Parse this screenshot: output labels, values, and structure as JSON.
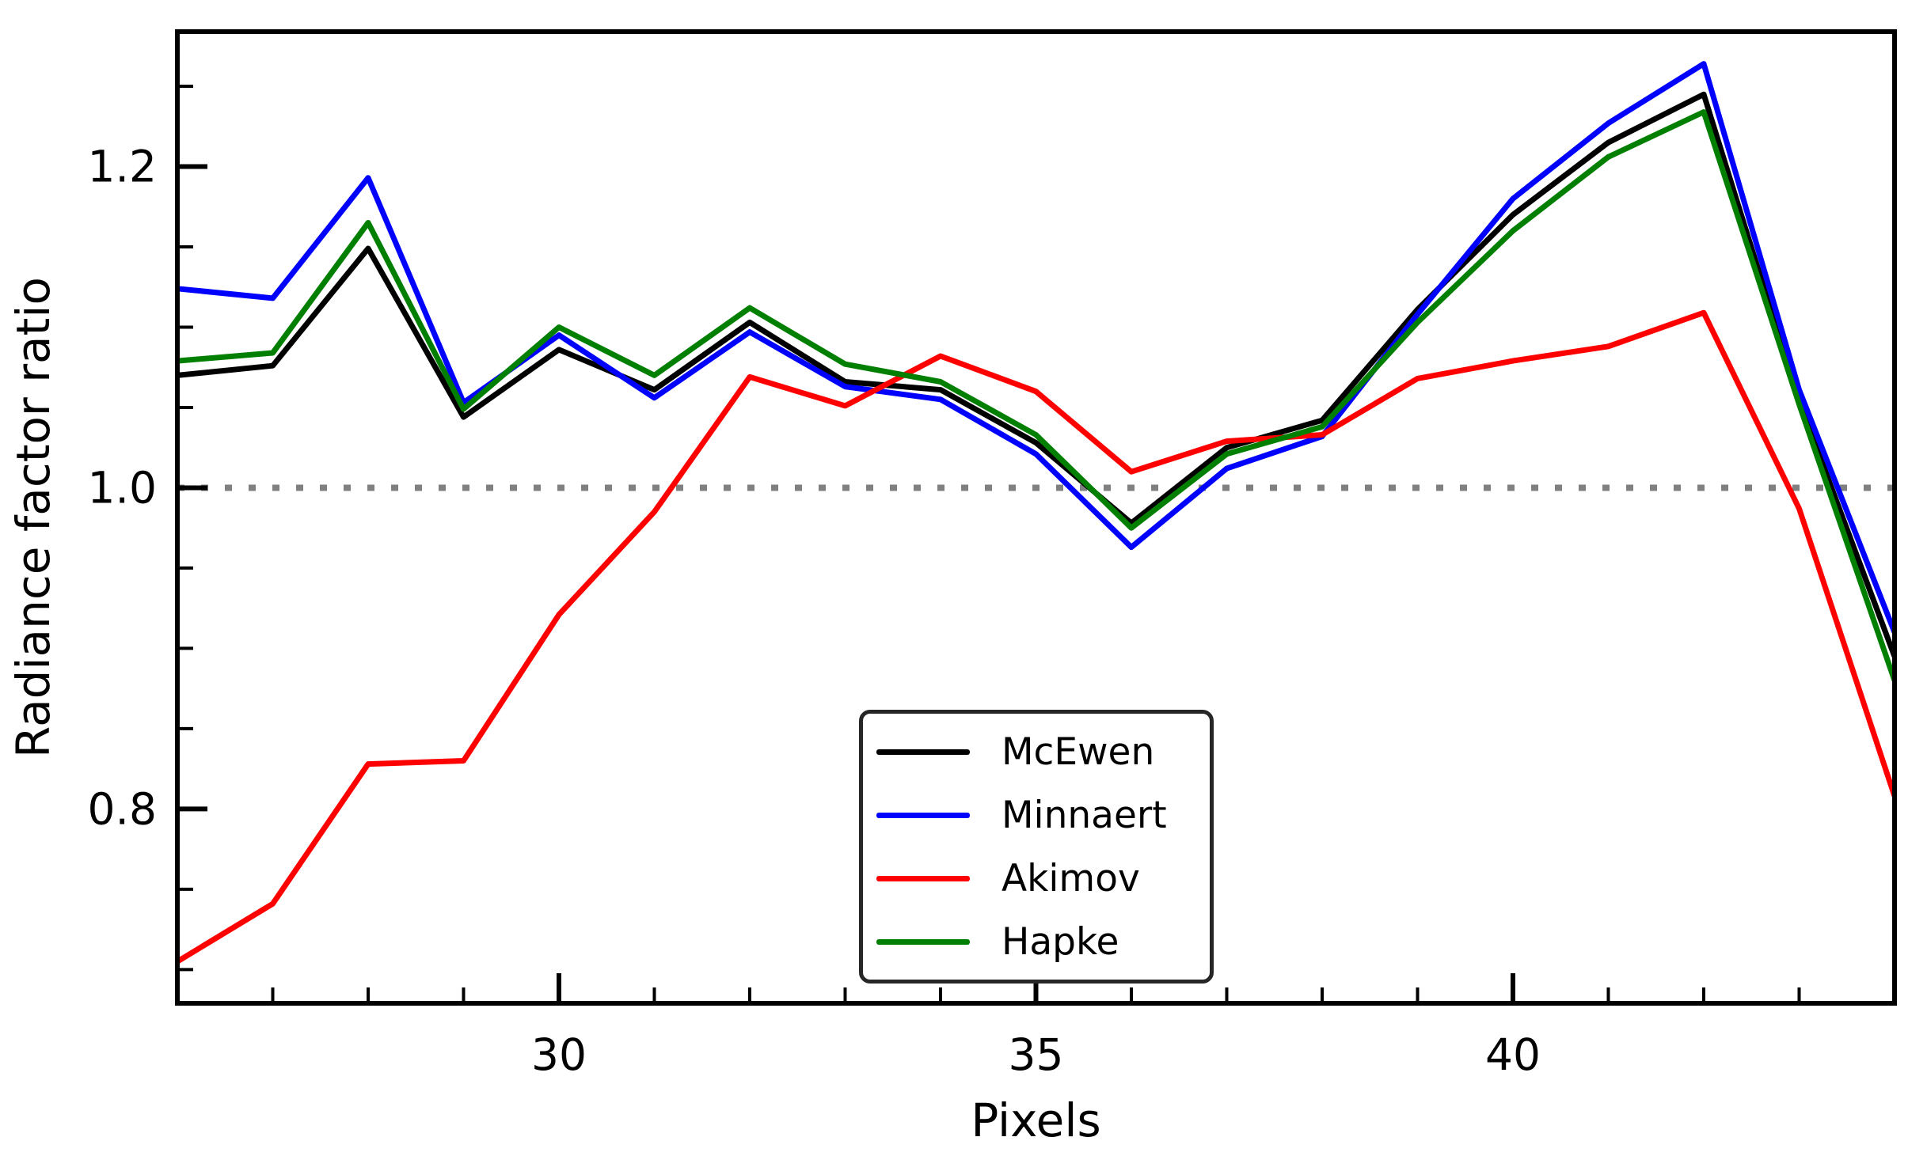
{
  "chart_data": {
    "type": "line",
    "title": "",
    "xlabel": "Pixels",
    "ylabel": "Radiance factor ratio",
    "xlim": [
      26,
      44
    ],
    "ylim": [
      0.679,
      1.284
    ],
    "grid": false,
    "legend_position": "lower center",
    "x": [
      26,
      27,
      28,
      29,
      30,
      31,
      32,
      33,
      34,
      35,
      36,
      37,
      38,
      39,
      40,
      41,
      42,
      43,
      44
    ],
    "series": [
      {
        "name": "McEwen",
        "color": "#000000",
        "values": [
          1.07,
          1.076,
          1.149,
          1.044,
          1.086,
          1.061,
          1.103,
          1.066,
          1.061,
          1.028,
          0.978,
          1.025,
          1.042,
          1.111,
          1.17,
          1.215,
          1.245,
          1.054,
          0.895
        ]
      },
      {
        "name": "Minnaert",
        "color": "#0000ff",
        "values": [
          1.124,
          1.118,
          1.193,
          1.053,
          1.095,
          1.056,
          1.097,
          1.063,
          1.055,
          1.021,
          0.963,
          1.012,
          1.032,
          1.108,
          1.18,
          1.227,
          1.264,
          1.061,
          0.91
        ]
      },
      {
        "name": "Akimov",
        "color": "#ff0000",
        "values": [
          0.705,
          0.741,
          0.828,
          0.83,
          0.921,
          0.985,
          1.069,
          1.051,
          1.082,
          1.06,
          1.01,
          1.029,
          1.033,
          1.068,
          1.079,
          1.088,
          1.109,
          0.987,
          0.808
        ]
      },
      {
        "name": "Hapke",
        "color": "#007f00",
        "values": [
          1.079,
          1.084,
          1.165,
          1.049,
          1.1,
          1.07,
          1.112,
          1.077,
          1.066,
          1.033,
          0.975,
          1.021,
          1.038,
          1.103,
          1.16,
          1.206,
          1.234,
          1.052,
          0.88
        ]
      }
    ],
    "reference_line": {
      "y": 1.0,
      "color": "#808080",
      "style": "dotted"
    },
    "x_major_ticks": [
      30,
      35,
      40
    ],
    "x_major_tick_labels": [
      "30",
      "35",
      "40"
    ],
    "x_minor_ticks": [
      27,
      28,
      29,
      31,
      32,
      33,
      34,
      36,
      37,
      38,
      39,
      41,
      42,
      43
    ],
    "y_major_ticks": [
      0.8,
      1.0,
      1.2
    ],
    "y_major_tick_labels": [
      "0.8",
      "1.0",
      "1.2"
    ],
    "y_minor_ticks": [
      0.7,
      0.75,
      0.85,
      0.9,
      0.95,
      1.05,
      1.1,
      1.15,
      1.25
    ]
  }
}
